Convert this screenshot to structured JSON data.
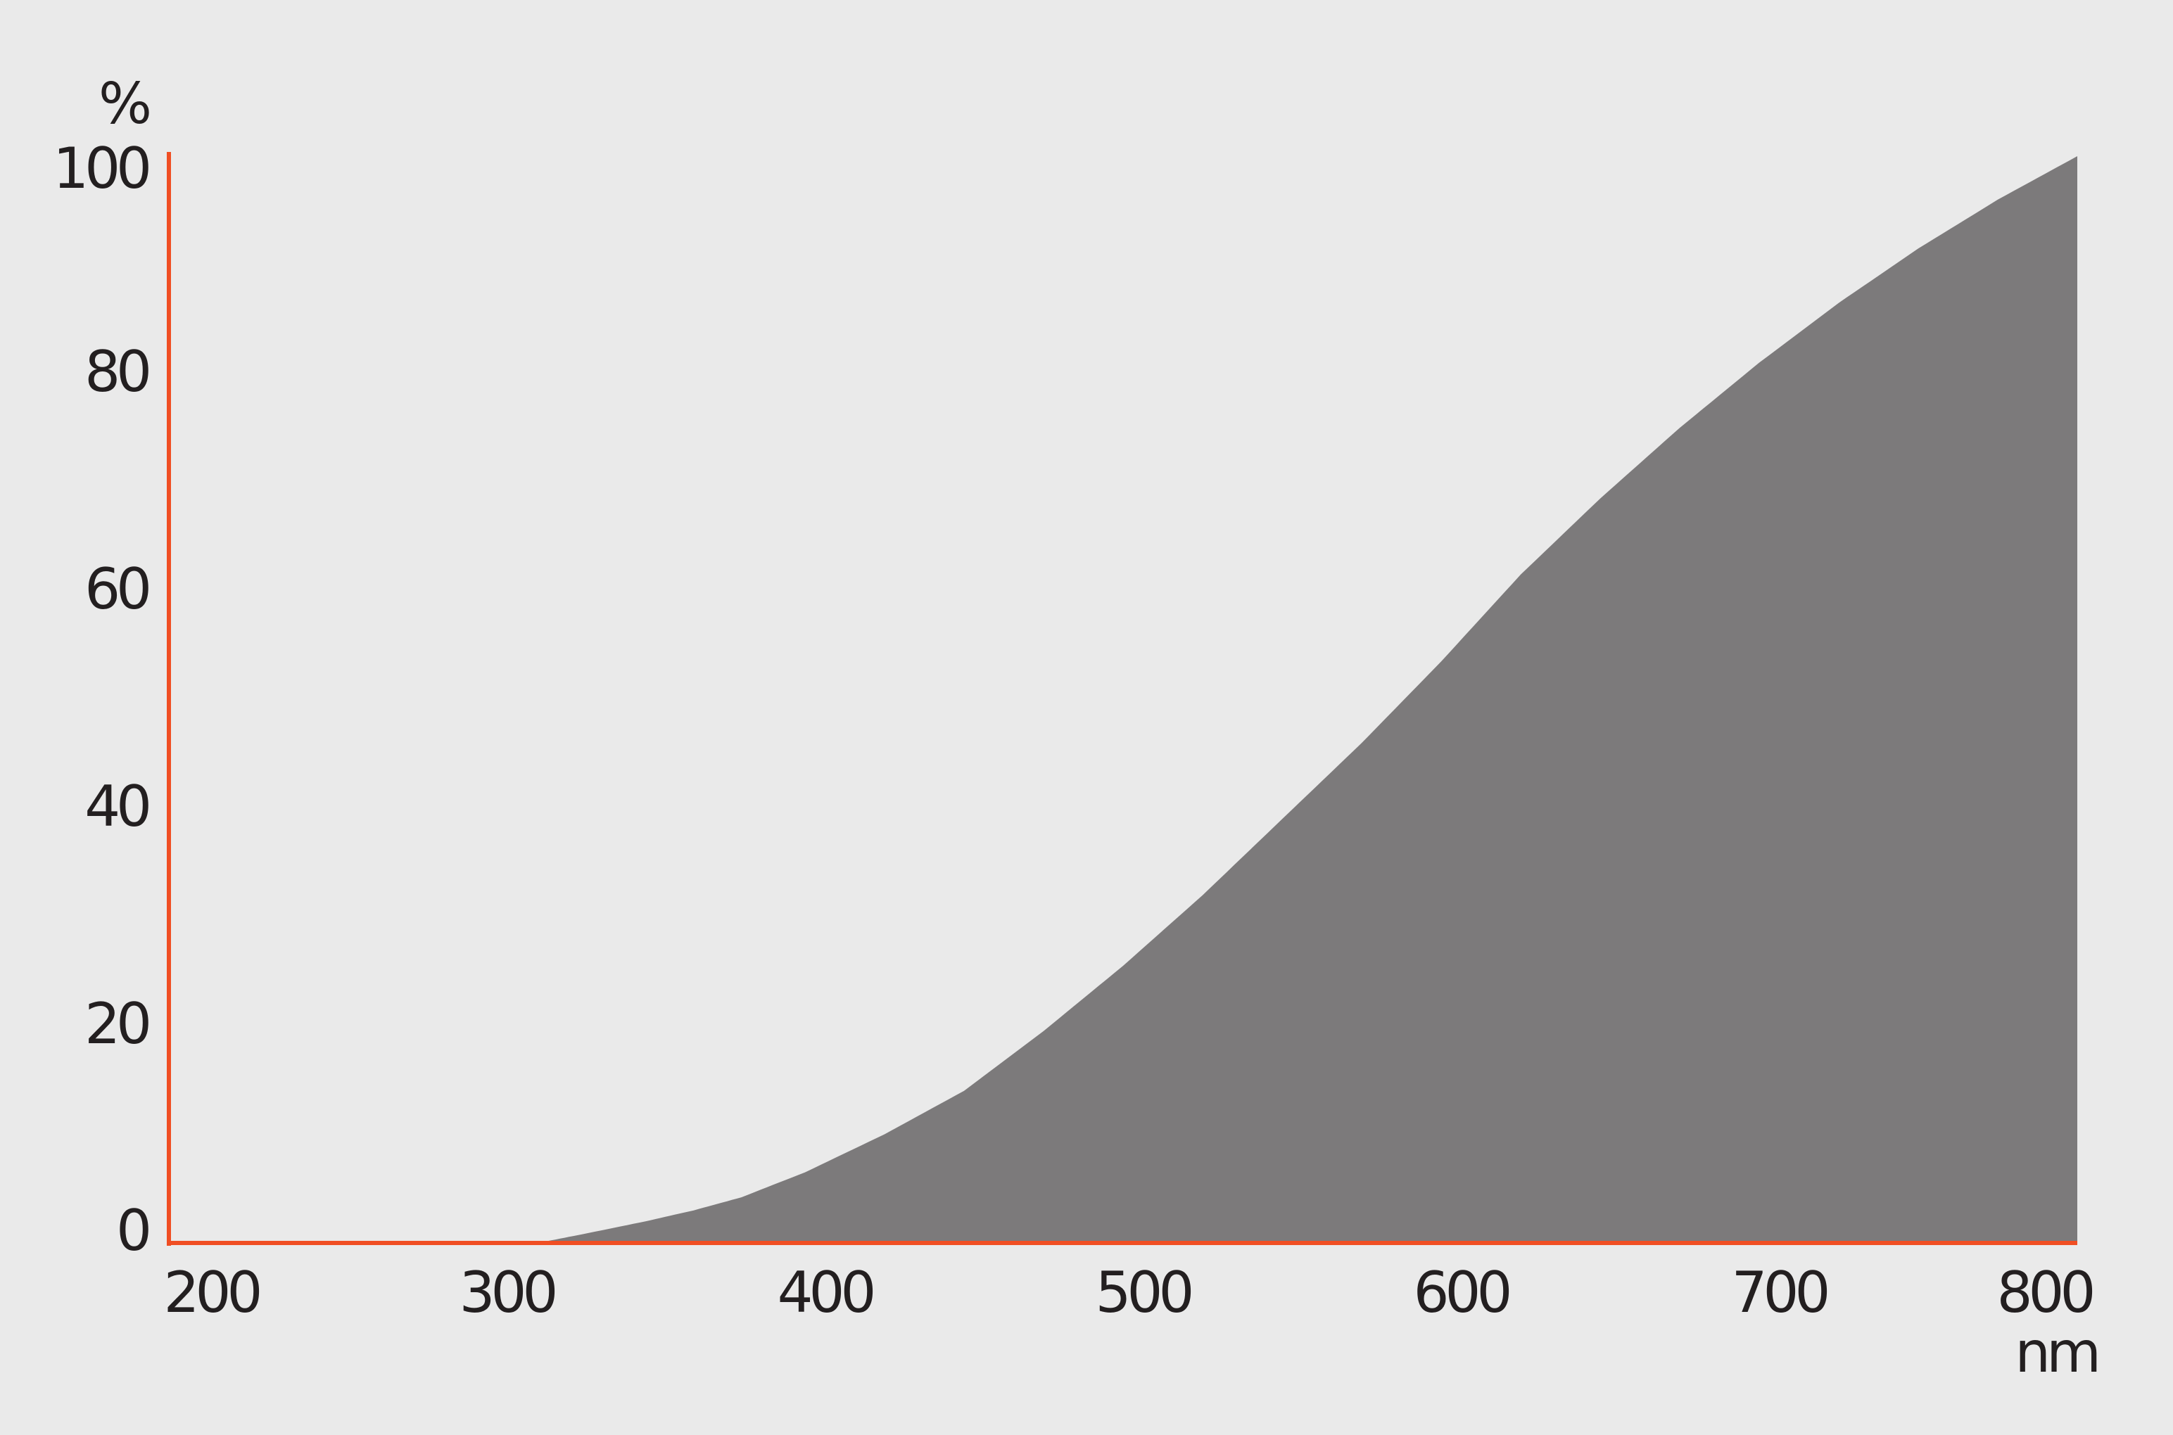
{
  "chart_data": {
    "type": "area",
    "ylabel": "%",
    "xlabel": "nm",
    "xlim": [
      200,
      800
    ],
    "ylim": [
      0,
      100
    ],
    "x_ticks": [
      200,
      300,
      400,
      500,
      600,
      700,
      800
    ],
    "y_ticks": [
      0,
      20,
      40,
      60,
      80,
      100
    ],
    "grid": false,
    "x": [
      200,
      316,
      330,
      350,
      365,
      380,
      400,
      425,
      450,
      475,
      500,
      525,
      550,
      575,
      600,
      625,
      650,
      675,
      700,
      725,
      750,
      775,
      800
    ],
    "y": [
      0,
      0,
      0.8,
      2,
      3,
      4.2,
      6.5,
      10,
      14,
      19.5,
      25.5,
      32,
      39,
      46,
      53.5,
      61.5,
      68.5,
      75,
      81,
      86.5,
      91.5,
      96,
      100
    ],
    "colors": {
      "background": "#eaeaea",
      "fill": "#7c7a7b",
      "axis": "#f04e23",
      "text": "#231f20"
    }
  }
}
